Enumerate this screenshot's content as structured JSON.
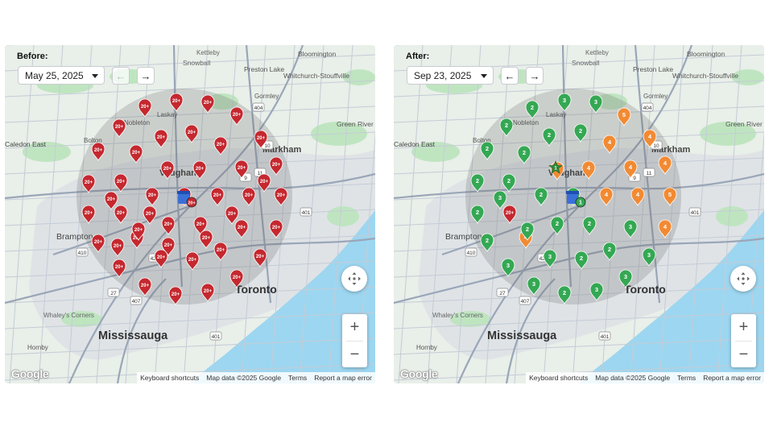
{
  "colors": {
    "water": "#9dd6f0",
    "land": "#e9efe9",
    "park": "#bfe5c0",
    "urban": "#dfe3e6",
    "major_road": "#9aa6b8",
    "minor_road": "#c4ccd6",
    "radius_circle": "rgba(95,95,95,0.22)",
    "pin_red": "#c5282f",
    "pin_green": "#34a853",
    "pin_orange": "#f28a33"
  },
  "map_labels": [
    {
      "text": "Kettleby"
    },
    {
      "text": "Bloomington"
    },
    {
      "text": "Snowball"
    },
    {
      "text": "Preston Lake"
    },
    {
      "text": "Whitchurch-Stouffville"
    },
    {
      "text": "Gormley"
    },
    {
      "text": "Laskay"
    },
    {
      "text": "Nobleton"
    },
    {
      "text": "Green River"
    },
    {
      "text": "Bolton"
    },
    {
      "text": "Caledon East"
    },
    {
      "text": "Markham"
    },
    {
      "text": "Vaughan"
    },
    {
      "text": "Brampton"
    },
    {
      "text": "Toronto"
    },
    {
      "text": "Whaley's Corners"
    },
    {
      "text": "Mississauga"
    },
    {
      "text": "Hornby"
    }
  ],
  "highway_shields": [
    "404",
    "10",
    "9",
    "427",
    "407",
    "410",
    "401",
    "401",
    "27",
    "11"
  ],
  "before": {
    "heading": "Before:",
    "date": "May 25, 2025",
    "pins": [
      {
        "label": "20+",
        "color": "red"
      },
      {
        "label": "20+",
        "color": "red"
      },
      {
        "label": "20+",
        "color": "red"
      },
      {
        "label": "20+",
        "color": "red"
      },
      {
        "label": "20+",
        "color": "red"
      },
      {
        "label": "20+",
        "color": "red"
      },
      {
        "label": "20+",
        "color": "red"
      },
      {
        "label": "20+",
        "color": "red"
      },
      {
        "label": "20+",
        "color": "red"
      },
      {
        "label": "20+",
        "color": "red"
      },
      {
        "label": "20+",
        "color": "red"
      },
      {
        "label": "20+",
        "color": "red"
      },
      {
        "label": "20+",
        "color": "red"
      },
      {
        "label": "20+",
        "color": "red"
      },
      {
        "label": "20+",
        "color": "red"
      },
      {
        "label": "20+",
        "color": "red"
      },
      {
        "label": "20+",
        "color": "red"
      },
      {
        "label": "20+",
        "color": "red"
      },
      {
        "label": "20+",
        "color": "red"
      },
      {
        "label": "20+",
        "color": "red"
      },
      {
        "label": "20+",
        "color": "red"
      },
      {
        "label": "20+",
        "color": "red"
      },
      {
        "label": "20+",
        "color": "red"
      },
      {
        "label": "20+",
        "color": "red"
      },
      {
        "label": "20+",
        "color": "red"
      },
      {
        "label": "20+",
        "color": "red"
      },
      {
        "label": "20+",
        "color": "red"
      },
      {
        "label": "20+",
        "color": "red"
      },
      {
        "label": "20+",
        "color": "red"
      },
      {
        "label": "20+",
        "color": "red"
      },
      {
        "label": "20+",
        "color": "red"
      },
      {
        "label": "20+",
        "color": "red"
      },
      {
        "label": "20+",
        "color": "red"
      },
      {
        "label": "20+",
        "color": "red"
      },
      {
        "label": "20+",
        "color": "red"
      },
      {
        "label": "20+",
        "color": "red"
      },
      {
        "label": "20+",
        "color": "red"
      },
      {
        "label": "20+",
        "color": "red"
      },
      {
        "label": "20+",
        "color": "red"
      },
      {
        "label": "20+",
        "color": "red"
      },
      {
        "label": "20+",
        "color": "red"
      },
      {
        "label": "20+",
        "color": "red"
      },
      {
        "label": "20+",
        "color": "red"
      },
      {
        "label": "20+",
        "color": "red"
      },
      {
        "label": "20+",
        "color": "red"
      },
      {
        "label": "20+",
        "color": "red"
      },
      {
        "label": "20+",
        "color": "red"
      }
    ],
    "store_badge": "20+"
  },
  "after": {
    "heading": "After:",
    "date": "Sep 23, 2025",
    "pins": [
      {
        "label": "2",
        "color": "green"
      },
      {
        "label": "3",
        "color": "green"
      },
      {
        "label": "3",
        "color": "green"
      },
      {
        "label": "5",
        "color": "orange"
      },
      {
        "label": "4",
        "color": "orange"
      },
      {
        "label": "2",
        "color": "green"
      },
      {
        "label": "2",
        "color": "green"
      },
      {
        "label": "2",
        "color": "green"
      },
      {
        "label": "4",
        "color": "orange"
      },
      {
        "label": "4",
        "color": "orange"
      },
      {
        "label": "4",
        "color": "orange"
      },
      {
        "label": "2",
        "color": "green"
      },
      {
        "label": "2",
        "color": "green"
      },
      {
        "label": "4",
        "color": "orange"
      },
      {
        "label": "4",
        "color": "orange"
      },
      {
        "label": "4",
        "color": "orange"
      },
      {
        "label": "2",
        "color": "green"
      },
      {
        "label": "2",
        "color": "green"
      },
      {
        "label": "2",
        "color": "green"
      },
      {
        "label": "5",
        "color": "orange"
      },
      {
        "label": "4",
        "color": "orange"
      },
      {
        "label": "4",
        "color": "orange"
      },
      {
        "label": "2",
        "color": "green"
      },
      {
        "label": "20+",
        "color": "red"
      },
      {
        "label": "2",
        "color": "green"
      },
      {
        "label": "2",
        "color": "green"
      },
      {
        "label": "3",
        "color": "green"
      },
      {
        "label": "4",
        "color": "orange"
      },
      {
        "label": "2",
        "color": "green"
      },
      {
        "label": "3",
        "color": "green"
      },
      {
        "label": "3",
        "color": "green"
      },
      {
        "label": "2",
        "color": "green"
      },
      {
        "label": "2",
        "color": "green"
      },
      {
        "label": "3",
        "color": "green"
      },
      {
        "label": "3",
        "color": "green"
      },
      {
        "label": "2",
        "color": "green"
      },
      {
        "label": "3",
        "color": "green"
      },
      {
        "label": "3",
        "color": "green"
      },
      {
        "label": "3",
        "color": "green"
      },
      {
        "label": "2",
        "color": "green"
      },
      {
        "label": "2",
        "color": "green"
      }
    ],
    "store_badge": "1",
    "star_badge": "1"
  },
  "controls": {
    "prev_icon": "arrow-left-icon",
    "next_icon": "arrow-right-icon",
    "recenter_icon": "recenter-icon",
    "zoom_in": "+",
    "zoom_out": "−"
  },
  "attribution": {
    "logo": "Google",
    "shortcuts": "Keyboard shortcuts",
    "map_data": "Map data ©2025 Google",
    "terms": "Terms",
    "report": "Report a map error"
  }
}
